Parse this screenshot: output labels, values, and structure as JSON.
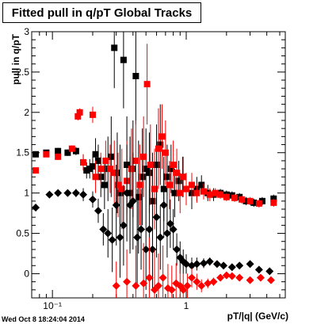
{
  "window": {
    "timestamp": "Wed Oct  8 18:24:04 2014"
  },
  "chart_data": {
    "type": "scatter",
    "title": "Fitted pull in q/pT  Global Tracks",
    "xlabel": "pT/|q| (GeV/c)",
    "ylabel": "pull in q/pT",
    "xscale": "log",
    "xlim": [
      0.07,
      5.5
    ],
    "ylim": [
      -0.3,
      3.0
    ],
    "x_ticks": [
      {
        "value": 0.1,
        "label": "10⁻¹"
      },
      {
        "value": 1,
        "label": "1"
      }
    ],
    "y_ticks": [
      {
        "value": 0,
        "label": "0"
      },
      {
        "value": 0.5,
        "label": "0.5"
      },
      {
        "value": 1,
        "label": "1"
      },
      {
        "value": 1.5,
        "label": "1.5"
      },
      {
        "value": 2,
        "label": "2"
      },
      {
        "value": 2.5,
        "label": "2.5"
      },
      {
        "value": 3,
        "label": "3"
      }
    ],
    "grid": false,
    "legend": "none",
    "series": [
      {
        "marker": "square",
        "color": "#000000",
        "points": [
          [
            0.075,
            1.48,
            0.02
          ],
          [
            0.09,
            1.5,
            0.03
          ],
          [
            0.11,
            1.52,
            0.04
          ],
          [
            0.13,
            1.5,
            0.04
          ],
          [
            0.15,
            1.52,
            0.05
          ],
          [
            0.17,
            1.38,
            0.1
          ],
          [
            0.18,
            1.28,
            0.1
          ],
          [
            0.19,
            1.3,
            0.12
          ],
          [
            0.2,
            1.33,
            0.15
          ],
          [
            0.21,
            1.48,
            0.2
          ],
          [
            0.22,
            1.4,
            0.2
          ],
          [
            0.23,
            1.2,
            0.25
          ],
          [
            0.245,
            1.1,
            0.3
          ],
          [
            0.26,
            1.3,
            0.4
          ],
          [
            0.275,
            1.45,
            0.5
          ],
          [
            0.29,
            2.8,
            0.5
          ],
          [
            0.305,
            1.25,
            0.5
          ],
          [
            0.32,
            1.0,
            0.6
          ],
          [
            0.34,
            2.65,
            0.6
          ],
          [
            0.36,
            1.35,
            0.6
          ],
          [
            0.38,
            1.0,
            0.7
          ],
          [
            0.4,
            1.3,
            0.6
          ],
          [
            0.42,
            2.45,
            0.6
          ],
          [
            0.44,
            0.95,
            0.7
          ],
          [
            0.47,
            1.2,
            0.6
          ],
          [
            0.5,
            1.3,
            0.5
          ],
          [
            0.53,
            1.25,
            0.5
          ],
          [
            0.56,
            0.9,
            0.6
          ],
          [
            0.6,
            1.35,
            0.5
          ],
          [
            0.64,
            1.6,
            0.5
          ],
          [
            0.68,
            1.05,
            0.4
          ],
          [
            0.72,
            1.2,
            0.4
          ],
          [
            0.77,
            1.3,
            0.3
          ],
          [
            0.82,
            1.0,
            0.3
          ],
          [
            0.88,
            1.15,
            0.25
          ],
          [
            0.94,
            1.2,
            0.25
          ],
          [
            1.0,
            1.05,
            0.2
          ],
          [
            1.1,
            1.0,
            0.2
          ],
          [
            1.2,
            1.05,
            0.15
          ],
          [
            1.3,
            1.1,
            0.12
          ],
          [
            1.45,
            1.0,
            0.1
          ],
          [
            1.6,
            0.98,
            0.08
          ],
          [
            1.8,
            1.0,
            0.05
          ],
          [
            2.0,
            0.98,
            0.05
          ],
          [
            2.2,
            0.97,
            0.05
          ],
          [
            2.5,
            0.95,
            0.05
          ],
          [
            2.8,
            0.9,
            0.05
          ],
          [
            3.2,
            0.88,
            0.05
          ],
          [
            3.7,
            0.9,
            0.05
          ],
          [
            4.5,
            0.93,
            0.05
          ]
        ]
      },
      {
        "marker": "square",
        "color": "#ff0000",
        "points": [
          [
            0.075,
            1.28,
            0.02
          ],
          [
            0.09,
            1.48,
            0.03
          ],
          [
            0.11,
            1.45,
            0.04
          ],
          [
            0.14,
            1.55,
            0.04
          ],
          [
            0.155,
            1.95,
            0.05
          ],
          [
            0.16,
            2.0,
            0.05
          ],
          [
            0.17,
            1.38,
            0.1
          ],
          [
            0.2,
            1.97,
            0.1
          ],
          [
            0.21,
            1.2,
            0.2
          ],
          [
            0.23,
            1.3,
            0.2
          ],
          [
            0.25,
            1.4,
            0.25
          ],
          [
            0.27,
            1.3,
            0.3
          ],
          [
            0.29,
            1.25,
            0.4
          ],
          [
            0.31,
            1.1,
            0.4
          ],
          [
            0.33,
            1.05,
            0.5
          ],
          [
            0.36,
            1.15,
            0.5
          ],
          [
            0.39,
            1.3,
            0.5
          ],
          [
            0.42,
            1.4,
            0.5
          ],
          [
            0.45,
            1.1,
            0.5
          ],
          [
            0.48,
            1.45,
            0.5
          ],
          [
            0.51,
            2.35,
            0.5
          ],
          [
            0.54,
            1.35,
            0.5
          ],
          [
            0.58,
            1.05,
            0.5
          ],
          [
            0.62,
            1.55,
            0.5
          ],
          [
            0.66,
            1.7,
            0.4
          ],
          [
            0.7,
            1.5,
            0.4
          ],
          [
            0.75,
            1.1,
            0.3
          ],
          [
            0.8,
            1.35,
            0.3
          ],
          [
            0.85,
            1.25,
            0.3
          ],
          [
            0.9,
            1.0,
            0.25
          ],
          [
            0.95,
            1.2,
            0.25
          ],
          [
            1.0,
            1.05,
            0.2
          ],
          [
            1.1,
            1.1,
            0.15
          ],
          [
            1.2,
            1.0,
            0.12
          ],
          [
            1.35,
            1.02,
            0.1
          ],
          [
            1.5,
            0.98,
            0.08
          ],
          [
            1.65,
            1.0,
            0.06
          ],
          [
            1.8,
            0.98,
            0.05
          ],
          [
            2.0,
            0.95,
            0.05
          ],
          [
            2.3,
            0.94,
            0.05
          ],
          [
            2.6,
            0.92,
            0.05
          ],
          [
            3.0,
            0.9,
            0.05
          ],
          [
            3.5,
            0.87,
            0.05
          ],
          [
            4.5,
            0.88,
            0.05
          ]
        ]
      },
      {
        "marker": "diamond",
        "color": "#000000",
        "points": [
          [
            0.075,
            0.82,
            0.02
          ],
          [
            0.095,
            0.98,
            0.03
          ],
          [
            0.11,
            1.0,
            0.04
          ],
          [
            0.13,
            1.0,
            0.04
          ],
          [
            0.15,
            1.0,
            0.05
          ],
          [
            0.17,
            0.98,
            0.08
          ],
          [
            0.2,
            0.92,
            0.1
          ],
          [
            0.22,
            0.78,
            0.15
          ],
          [
            0.24,
            0.55,
            0.2
          ],
          [
            0.26,
            0.5,
            0.3
          ],
          [
            0.28,
            0.42,
            0.4
          ],
          [
            0.3,
            0.85,
            0.5
          ],
          [
            0.32,
            0.45,
            0.5
          ],
          [
            0.34,
            0.6,
            0.5
          ],
          [
            0.36,
            1.0,
            0.6
          ],
          [
            0.38,
            0.85,
            0.6
          ],
          [
            0.4,
            0.9,
            0.6
          ],
          [
            0.43,
            0.45,
            0.6
          ],
          [
            0.46,
            0.55,
            0.5
          ],
          [
            0.5,
            0.3,
            0.5
          ],
          [
            0.53,
            0.55,
            0.5
          ],
          [
            0.56,
            0.3,
            0.5
          ],
          [
            0.6,
            0.7,
            0.5
          ],
          [
            0.64,
            0.45,
            0.4
          ],
          [
            0.68,
            0.85,
            0.4
          ],
          [
            0.72,
            0.5,
            0.3
          ],
          [
            0.76,
            0.62,
            0.3
          ],
          [
            0.8,
            0.55,
            0.25
          ],
          [
            0.85,
            0.3,
            0.2
          ],
          [
            0.9,
            0.2,
            0.2
          ],
          [
            0.95,
            0.15,
            0.15
          ],
          [
            1.0,
            0.12,
            0.12
          ],
          [
            1.1,
            0.1,
            0.1
          ],
          [
            1.2,
            0.12,
            0.08
          ],
          [
            1.35,
            0.13,
            0.06
          ],
          [
            1.5,
            0.15,
            0.05
          ],
          [
            1.7,
            0.12,
            0.04
          ],
          [
            1.9,
            0.1,
            0.03
          ],
          [
            2.2,
            0.08,
            0.03
          ],
          [
            2.5,
            0.1,
            0.03
          ],
          [
            3.0,
            0.12,
            0.03
          ],
          [
            3.5,
            0.05,
            0.03
          ],
          [
            4.2,
            0.03,
            0.03
          ]
        ]
      },
      {
        "marker": "diamond",
        "color": "#ff0000",
        "points": [
          [
            0.3,
            -0.15,
            0.3
          ],
          [
            0.36,
            -0.1,
            0.4
          ],
          [
            0.42,
            -0.15,
            0.5
          ],
          [
            0.48,
            -0.12,
            0.5
          ],
          [
            0.53,
            -0.05,
            0.5
          ],
          [
            0.58,
            -0.2,
            0.5
          ],
          [
            0.62,
            -0.15,
            0.4
          ],
          [
            0.67,
            -0.05,
            0.4
          ],
          [
            0.73,
            -0.18,
            0.3
          ],
          [
            0.78,
            -0.2,
            0.3
          ],
          [
            0.84,
            -0.12,
            0.25
          ],
          [
            0.9,
            -0.15,
            0.2
          ],
          [
            0.95,
            -0.2,
            0.2
          ],
          [
            1.02,
            -0.15,
            0.15
          ],
          [
            1.1,
            -0.05,
            0.12
          ],
          [
            1.2,
            -0.1,
            0.1
          ],
          [
            1.3,
            -0.15,
            0.08
          ],
          [
            1.45,
            -0.12,
            0.06
          ],
          [
            1.6,
            -0.1,
            0.05
          ],
          [
            1.8,
            -0.05,
            0.04
          ],
          [
            2.0,
            -0.02,
            0.04
          ],
          [
            2.2,
            -0.03,
            0.03
          ],
          [
            2.5,
            -0.05,
            0.03
          ],
          [
            3.0,
            -0.08,
            0.03
          ],
          [
            3.6,
            -0.05,
            0.03
          ],
          [
            4.3,
            -0.08,
            0.03
          ]
        ]
      }
    ]
  }
}
